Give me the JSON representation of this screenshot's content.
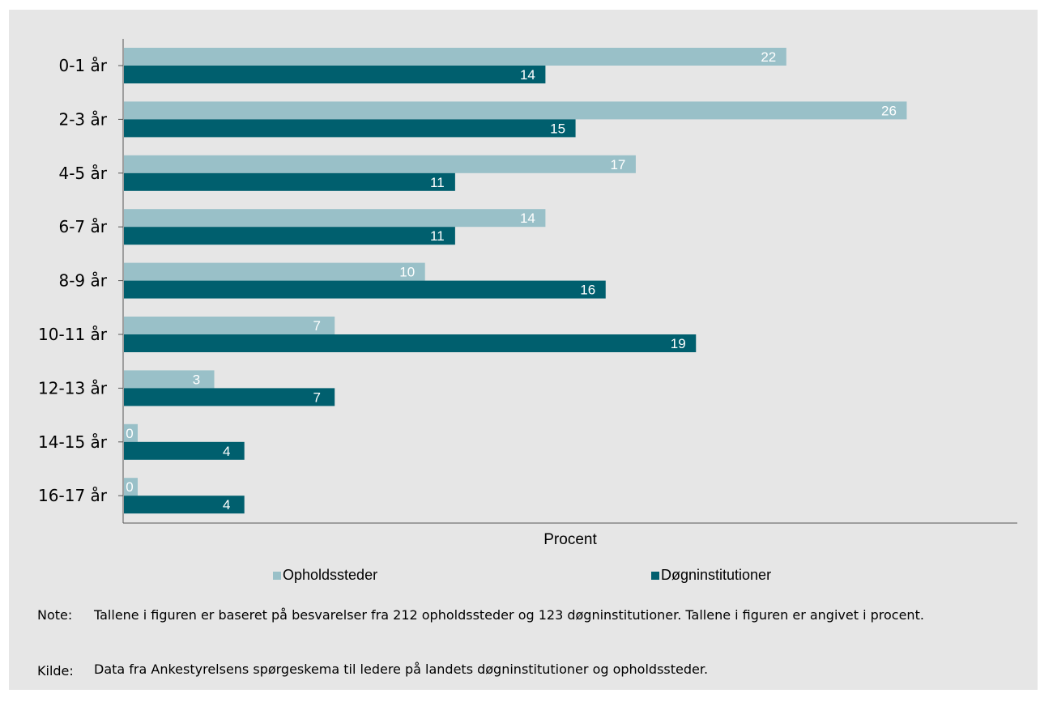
{
  "chart_data": {
    "type": "bar",
    "orientation": "horizontal",
    "categories": [
      "0-1 år",
      "2-3 år",
      "4-5 år",
      "6-7 år",
      "8-9 år",
      "10-11 år",
      "12-13 år",
      "14-15 år",
      "16-17 år"
    ],
    "series": [
      {
        "name": "Opholdssteder",
        "color": "#99c0c8",
        "values": [
          22,
          26,
          17,
          14,
          10,
          7,
          3,
          0,
          0
        ]
      },
      {
        "name": "Døgninstitutioner",
        "color": "#005f6e",
        "values": [
          14,
          15,
          11,
          11,
          16,
          19,
          7,
          4,
          4
        ]
      }
    ],
    "xlabel": "Procent",
    "xlim": [
      0,
      29.7
    ],
    "grid": false,
    "legend": "bottom"
  },
  "notes": {
    "note_label": "Note:",
    "note_text": "Tallene i figuren er baseret på besvarelser fra 212 opholdssteder og 123 døgninstitutioner. Tallene i figuren er angivet i procent.",
    "source_label": "Kilde:",
    "source_text": "Data fra Ankestyrelsens spørgeskema til ledere på landets døgninstitutioner og opholdssteder."
  },
  "colors": {
    "background": "#e6e6e6",
    "light_bar": "#99c0c8",
    "dark_bar": "#005f6e"
  }
}
